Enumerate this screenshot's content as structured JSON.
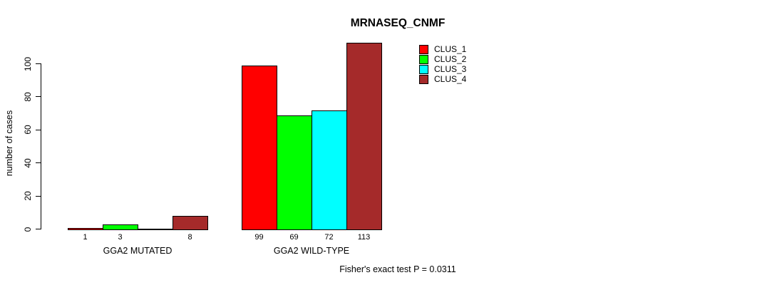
{
  "chart_data": {
    "type": "bar",
    "title": "MRNASEQ_CNMF",
    "ylabel": "number of cases",
    "xlabel": "",
    "ylim": [
      0,
      100
    ],
    "yticks": [
      0,
      20,
      40,
      60,
      80,
      100
    ],
    "categories": [
      "GGA2 MUTATED",
      "GGA2 WILD-TYPE"
    ],
    "series": [
      {
        "name": "CLUS_1",
        "color": "#FF0000",
        "values": [
          1,
          99
        ]
      },
      {
        "name": "CLUS_2",
        "color": "#00FF00",
        "values": [
          3,
          69
        ]
      },
      {
        "name": "CLUS_3",
        "color": "#00FFFF",
        "values": [
          0,
          72
        ]
      },
      {
        "name": "CLUS_4",
        "color": "#A52A2A",
        "values": [
          8,
          113
        ]
      }
    ],
    "bar_value_labels": {
      "GGA2 MUTATED": [
        1,
        3,
        0,
        8
      ],
      "GGA2 WILD-TYPE": [
        99,
        69,
        72,
        113
      ]
    },
    "zero_value_labels_hidden": true,
    "legend_position": "top-right",
    "grid": false,
    "annotation": "Fisher's exact test P = 0.0311"
  }
}
